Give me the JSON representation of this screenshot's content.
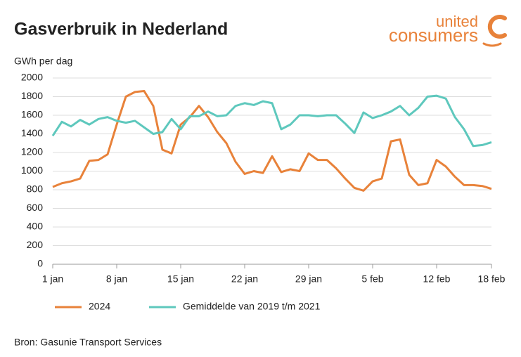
{
  "chart_data": {
    "type": "line",
    "title": "Gasverbruik in Nederland",
    "y_label": "GWh per dag",
    "logo": [
      "united",
      "consumers"
    ],
    "source": "Bron: Gasunie Transport Services",
    "categories": [
      "1 jan",
      null,
      null,
      null,
      null,
      null,
      null,
      "8 jan",
      null,
      null,
      null,
      null,
      null,
      null,
      "15 jan",
      null,
      null,
      null,
      null,
      null,
      null,
      "22 jan",
      null,
      null,
      null,
      null,
      null,
      null,
      "29 jan",
      null,
      null,
      null,
      null,
      null,
      null,
      "5 feb",
      null,
      null,
      null,
      null,
      null,
      null,
      "12 feb",
      null,
      null,
      null,
      null,
      null,
      "18 feb"
    ],
    "series": [
      {
        "name": "2024",
        "color": "#e8823a",
        "values": [
          830,
          870,
          890,
          920,
          1110,
          1120,
          1180,
          1500,
          1800,
          1850,
          1860,
          1700,
          1230,
          1190,
          1500,
          1580,
          1700,
          1580,
          1420,
          1300,
          1100,
          970,
          1000,
          980,
          1160,
          990,
          1020,
          1000,
          1190,
          1120,
          1120,
          1030,
          920,
          820,
          790,
          890,
          920,
          1320,
          1340,
          960,
          850,
          870,
          1120,
          1050,
          940,
          850,
          850,
          840,
          810
        ]
      },
      {
        "name": "Gemiddelde van 2019 t/m 2021",
        "color": "#5ec8bd",
        "values": [
          1380,
          1530,
          1480,
          1550,
          1500,
          1560,
          1580,
          1540,
          1520,
          1540,
          1470,
          1400,
          1420,
          1560,
          1450,
          1590,
          1590,
          1640,
          1590,
          1600,
          1700,
          1730,
          1710,
          1750,
          1730,
          1450,
          1500,
          1600,
          1600,
          1590,
          1600,
          1600,
          1510,
          1410,
          1630,
          1570,
          1600,
          1640,
          1700,
          1600,
          1680,
          1800,
          1810,
          1780,
          1580,
          1450,
          1270,
          1280,
          1310
        ]
      }
    ],
    "ylim": [
      0,
      2000
    ],
    "yticks": [
      0,
      200,
      400,
      600,
      800,
      1000,
      1200,
      1400,
      1600,
      1800,
      2000
    ],
    "grid": true
  }
}
